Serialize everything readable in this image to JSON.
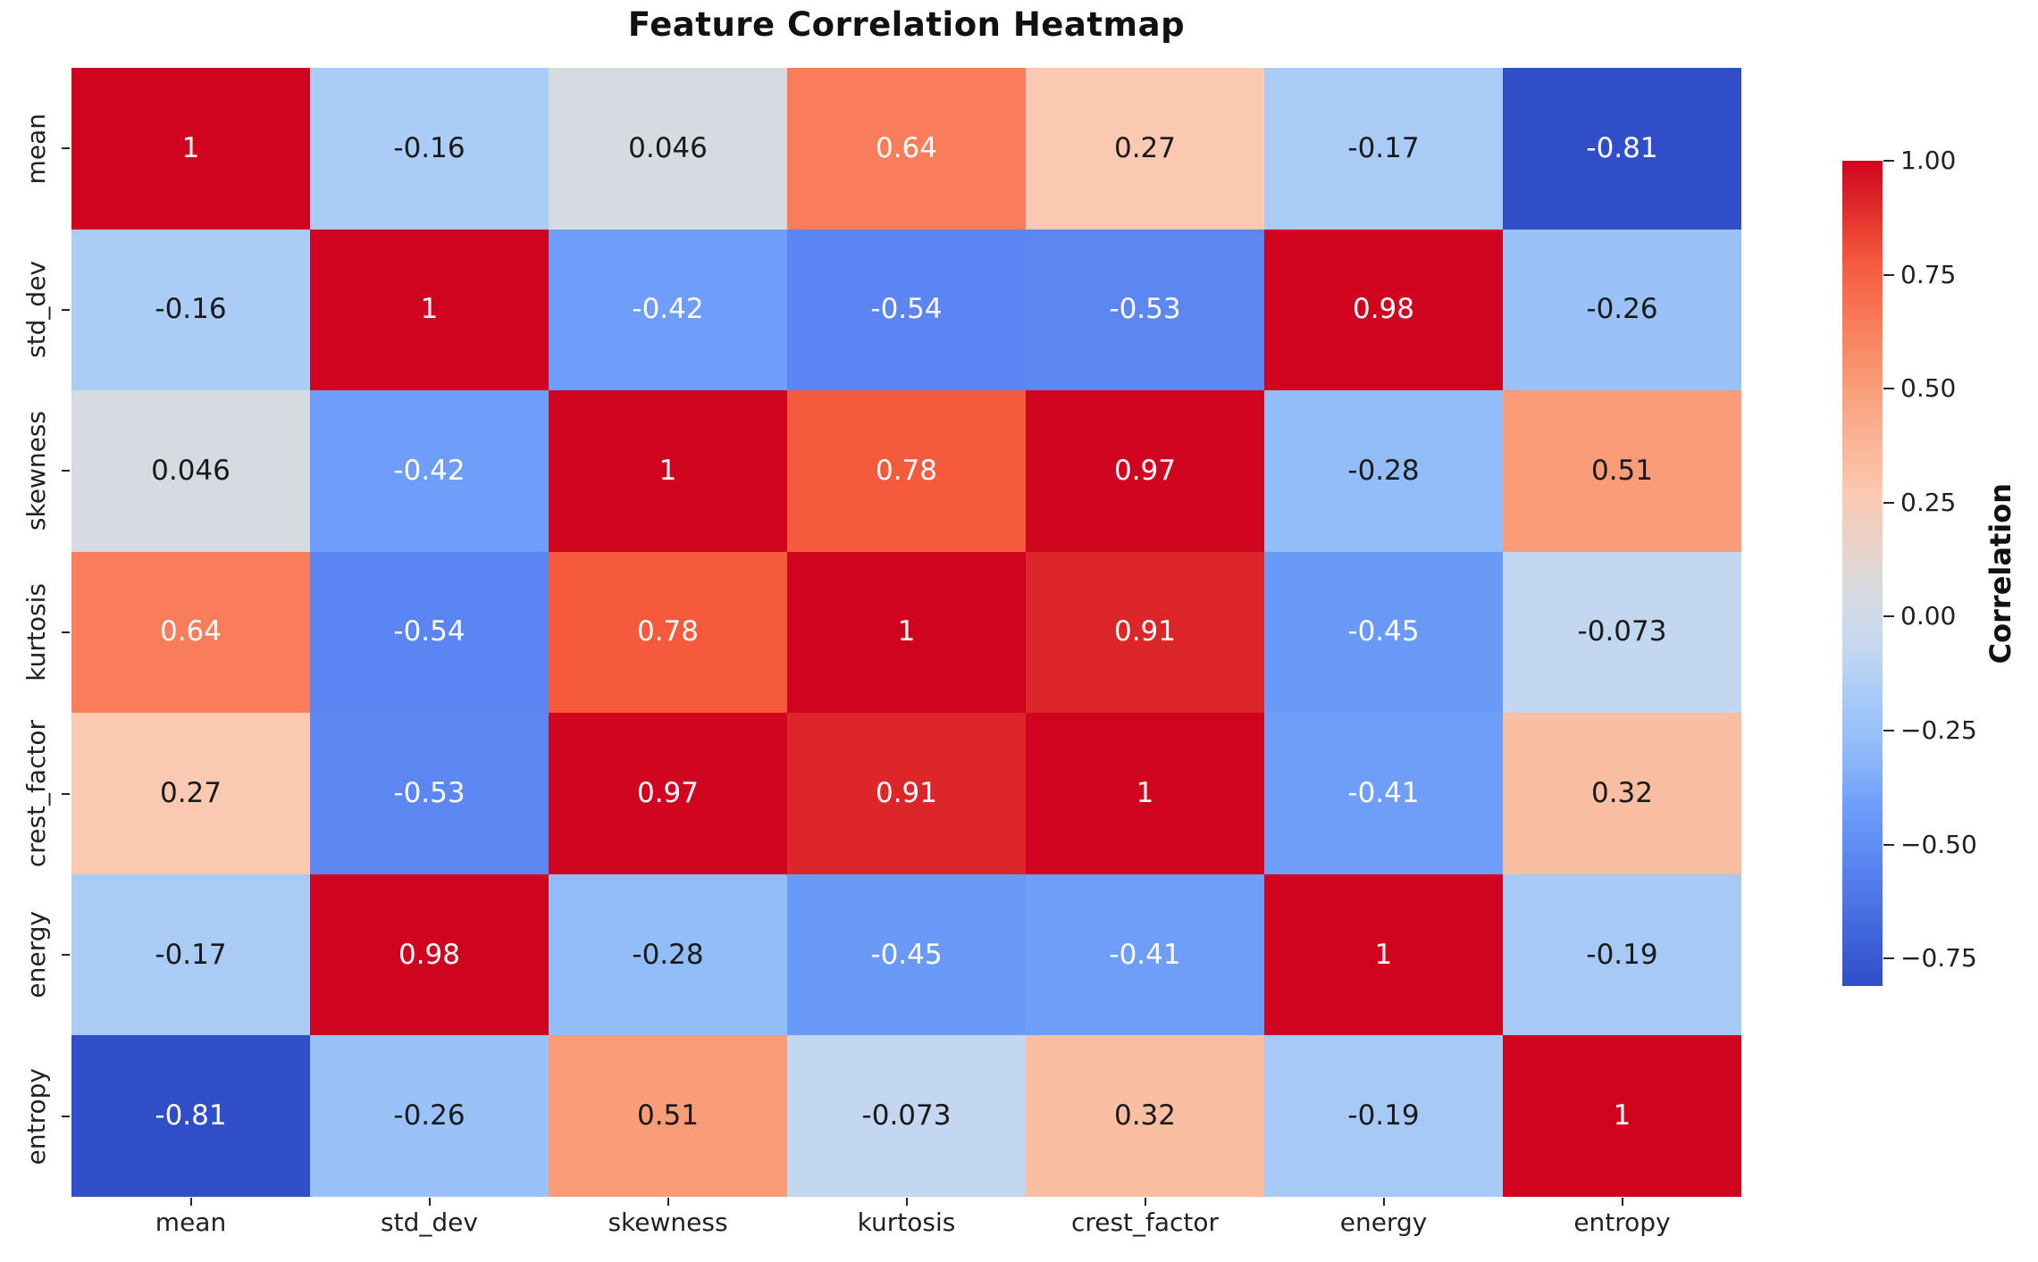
{
  "page": {
    "background": "#ffffff"
  },
  "chart_data": {
    "type": "heatmap",
    "title": "Feature Correlation Heatmap",
    "x_tick_labels": [
      "mean",
      "std_dev",
      "skewness",
      "kurtosis",
      "crest_factor",
      "energy",
      "entropy"
    ],
    "y_tick_labels": [
      "mean",
      "std_dev",
      "skewness",
      "kurtosis",
      "crest_factor",
      "energy",
      "entropy"
    ],
    "matrix": [
      [
        1,
        -0.16,
        0.046,
        0.64,
        0.27,
        -0.17,
        -0.81
      ],
      [
        -0.16,
        1,
        -0.42,
        -0.54,
        -0.53,
        0.98,
        -0.26
      ],
      [
        0.046,
        -0.42,
        1,
        0.78,
        0.97,
        -0.28,
        0.51
      ],
      [
        0.64,
        -0.54,
        0.78,
        1,
        0.91,
        -0.45,
        -0.073
      ],
      [
        0.27,
        -0.53,
        0.97,
        0.91,
        1,
        -0.41,
        0.32
      ],
      [
        -0.17,
        0.98,
        -0.28,
        -0.45,
        -0.41,
        1,
        -0.19
      ],
      [
        -0.81,
        -0.26,
        0.51,
        -0.073,
        0.32,
        -0.19,
        1
      ]
    ],
    "cell_colors": {
      "1": "#d1041f",
      "0.98": "#d1041f",
      "0.97": "#d20520",
      "0.91": "#dc2629",
      "0.78": "#f55a3d",
      "0.64": "#f97d5b",
      "0.51": "#f99c77",
      "0.32": "#fabfa3",
      "0.27": "#fbc9b1",
      "0.046": "#d6dbe2",
      "-0.073": "#c4d7f0",
      "-0.16": "#abccf6",
      "-0.17": "#aacbf6",
      "-0.19": "#a7c9f6",
      "-0.26": "#9ac2f8",
      "-0.28": "#93bdf9",
      "-0.41": "#6f9ef9",
      "-0.42": "#6e9dfa",
      "-0.45": "#699af8",
      "-0.53": "#5c87f3",
      "-0.54": "#5a85f2",
      "-0.81": "#2f4ec8"
    },
    "annotation_text_dark": "#1a1a1a",
    "annotation_text_light": "#ffffff",
    "grid_on": false,
    "colorbar": {
      "label": "Correlation",
      "vmin": -0.81,
      "vmax": 1.0,
      "tick_values": [
        1.0,
        0.75,
        0.5,
        0.25,
        0.0,
        -0.25,
        -0.5,
        -0.75
      ],
      "tick_labels": [
        "1.00",
        "0.75",
        "0.50",
        "0.25",
        "0.00",
        "−0.25",
        "−0.50",
        "−0.75"
      ],
      "gradient_stops": [
        {
          "pos": 0,
          "color": "#d1041f"
        },
        {
          "pos": 5,
          "color": "#dc2629"
        },
        {
          "pos": 12.2,
          "color": "#f55a3d"
        },
        {
          "pos": 19.9,
          "color": "#f97d5b"
        },
        {
          "pos": 27.1,
          "color": "#f99c77"
        },
        {
          "pos": 40.3,
          "color": "#fbc9b1"
        },
        {
          "pos": 52.7,
          "color": "#d6dbe2"
        },
        {
          "pos": 59.3,
          "color": "#c4d7f0"
        },
        {
          "pos": 64.1,
          "color": "#abccf6"
        },
        {
          "pos": 70.7,
          "color": "#93bdf9"
        },
        {
          "pos": 78.5,
          "color": "#6e9dfa"
        },
        {
          "pos": 85.1,
          "color": "#5a85f2"
        },
        {
          "pos": 100,
          "color": "#2f4ec8"
        }
      ]
    }
  }
}
